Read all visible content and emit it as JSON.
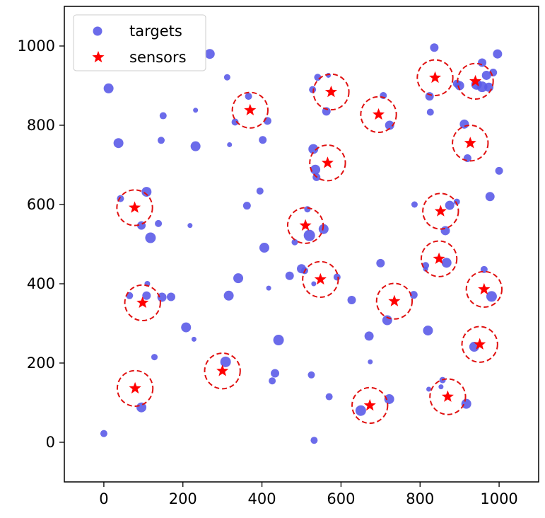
{
  "chart_data": {
    "type": "scatter",
    "xlim": [
      -100,
      1100
    ],
    "ylim": [
      -100,
      1100
    ],
    "xticks": [
      "0",
      "200",
      "400",
      "600",
      "800",
      "1000"
    ],
    "yticks": [
      "0",
      "200",
      "400",
      "600",
      "800",
      "1000"
    ],
    "grid": false,
    "legend_position": "top-left",
    "colors": {
      "targets": "#5b5be8",
      "sensors": "#ff0000",
      "circle": "#e01010"
    },
    "sensing_radius": 45,
    "series": [
      {
        "name": "targets",
        "marker": "circle",
        "points": [
          {
            "x": 0,
            "y": 22,
            "s": 5
          },
          {
            "x": 12,
            "y": 893,
            "s": 7
          },
          {
            "x": 37,
            "y": 755,
            "s": 7
          },
          {
            "x": 42,
            "y": 615,
            "s": 5
          },
          {
            "x": 65,
            "y": 370,
            "s": 5
          },
          {
            "x": 95,
            "y": 88,
            "s": 7
          },
          {
            "x": 95,
            "y": 547,
            "s": 6
          },
          {
            "x": 108,
            "y": 632,
            "s": 7
          },
          {
            "x": 108,
            "y": 370,
            "s": 6
          },
          {
            "x": 110,
            "y": 400,
            "s": 4
          },
          {
            "x": 118,
            "y": 516,
            "s": 7.5
          },
          {
            "x": 128,
            "y": 215,
            "s": 4.5
          },
          {
            "x": 138,
            "y": 552,
            "s": 5
          },
          {
            "x": 145,
            "y": 762,
            "s": 5
          },
          {
            "x": 147,
            "y": 366,
            "s": 6.5
          },
          {
            "x": 150,
            "y": 824,
            "s": 5
          },
          {
            "x": 170,
            "y": 367,
            "s": 6
          },
          {
            "x": 208,
            "y": 290,
            "s": 7
          },
          {
            "x": 218,
            "y": 547,
            "s": 3.5
          },
          {
            "x": 228,
            "y": 260,
            "s": 3.5
          },
          {
            "x": 232,
            "y": 838,
            "s": 3.5
          },
          {
            "x": 232,
            "y": 747,
            "s": 7
          },
          {
            "x": 268,
            "y": 980,
            "s": 7
          },
          {
            "x": 308,
            "y": 203,
            "s": 7.5
          },
          {
            "x": 312,
            "y": 921,
            "s": 4.5
          },
          {
            "x": 316,
            "y": 370,
            "s": 7
          },
          {
            "x": 318,
            "y": 751,
            "s": 3.5
          },
          {
            "x": 332,
            "y": 808,
            "s": 5
          },
          {
            "x": 340,
            "y": 414,
            "s": 7
          },
          {
            "x": 362,
            "y": 597,
            "s": 5.5
          },
          {
            "x": 366,
            "y": 873,
            "s": 5
          },
          {
            "x": 395,
            "y": 634,
            "s": 5
          },
          {
            "x": 402,
            "y": 763,
            "s": 5.5
          },
          {
            "x": 406,
            "y": 491,
            "s": 7
          },
          {
            "x": 414,
            "y": 811,
            "s": 5.5
          },
          {
            "x": 417,
            "y": 389,
            "s": 3.5
          },
          {
            "x": 426,
            "y": 155,
            "s": 5
          },
          {
            "x": 433,
            "y": 174,
            "s": 6
          },
          {
            "x": 442,
            "y": 258,
            "s": 7.5
          },
          {
            "x": 470,
            "y": 420,
            "s": 6
          },
          {
            "x": 483,
            "y": 505,
            "s": 4.5
          },
          {
            "x": 500,
            "y": 438,
            "s": 6.5
          },
          {
            "x": 508,
            "y": 433,
            "s": 5
          },
          {
            "x": 515,
            "y": 588,
            "s": 4.5
          },
          {
            "x": 520,
            "y": 522,
            "s": 8
          },
          {
            "x": 525,
            "y": 170,
            "s": 5
          },
          {
            "x": 528,
            "y": 890,
            "s": 5
          },
          {
            "x": 530,
            "y": 740,
            "s": 7
          },
          {
            "x": 531,
            "y": 400,
            "s": 3.5
          },
          {
            "x": 532,
            "y": 5,
            "s": 5
          },
          {
            "x": 535,
            "y": 688,
            "s": 7
          },
          {
            "x": 538,
            "y": 669,
            "s": 5.5
          },
          {
            "x": 541,
            "y": 921,
            "s": 5
          },
          {
            "x": 556,
            "y": 538,
            "s": 7
          },
          {
            "x": 563,
            "y": 835,
            "s": 6
          },
          {
            "x": 568,
            "y": 926,
            "s": 3.5
          },
          {
            "x": 570,
            "y": 115,
            "s": 5
          },
          {
            "x": 590,
            "y": 417,
            "s": 5
          },
          {
            "x": 627,
            "y": 359,
            "s": 6
          },
          {
            "x": 650,
            "y": 80,
            "s": 7.5
          },
          {
            "x": 671,
            "y": 268,
            "s": 6.5
          },
          {
            "x": 674,
            "y": 203,
            "s": 3.5
          },
          {
            "x": 700,
            "y": 452,
            "s": 6
          },
          {
            "x": 707,
            "y": 875,
            "s": 5
          },
          {
            "x": 717,
            "y": 308,
            "s": 7
          },
          {
            "x": 722,
            "y": 109,
            "s": 7
          },
          {
            "x": 723,
            "y": 800,
            "s": 6.5
          },
          {
            "x": 784,
            "y": 372,
            "s": 5.5
          },
          {
            "x": 786,
            "y": 600,
            "s": 4.5
          },
          {
            "x": 814,
            "y": 446,
            "s": 5
          },
          {
            "x": 814,
            "y": 437,
            "s": 3.5
          },
          {
            "x": 820,
            "y": 282,
            "s": 7
          },
          {
            "x": 822,
            "y": 134,
            "s": 3.5
          },
          {
            "x": 824,
            "y": 873,
            "s": 6
          },
          {
            "x": 826,
            "y": 833,
            "s": 5
          },
          {
            "x": 836,
            "y": 996,
            "s": 6
          },
          {
            "x": 853,
            "y": 140,
            "s": 3.5
          },
          {
            "x": 857,
            "y": 157,
            "s": 4.5
          },
          {
            "x": 864,
            "y": 534,
            "s": 6.5
          },
          {
            "x": 867,
            "y": 453,
            "s": 7
          },
          {
            "x": 875,
            "y": 598,
            "s": 6.5
          },
          {
            "x": 893,
            "y": 905,
            "s": 5.5
          },
          {
            "x": 893,
            "y": 607,
            "s": 4.5
          },
          {
            "x": 900,
            "y": 900,
            "s": 6.5
          },
          {
            "x": 912,
            "y": 803,
            "s": 6.5
          },
          {
            "x": 917,
            "y": 97,
            "s": 7
          },
          {
            "x": 920,
            "y": 717,
            "s": 5.5
          },
          {
            "x": 937,
            "y": 241,
            "s": 7
          },
          {
            "x": 943,
            "y": 903,
            "s": 7.5
          },
          {
            "x": 957,
            "y": 897,
            "s": 7.5
          },
          {
            "x": 957,
            "y": 958,
            "s": 6
          },
          {
            "x": 962,
            "y": 436,
            "s": 5
          },
          {
            "x": 968,
            "y": 926,
            "s": 6.5
          },
          {
            "x": 974,
            "y": 896,
            "s": 6.5
          },
          {
            "x": 977,
            "y": 620,
            "s": 6.5
          },
          {
            "x": 981,
            "y": 368,
            "s": 7.5
          },
          {
            "x": 985,
            "y": 933,
            "s": 5.5
          },
          {
            "x": 996,
            "y": 980,
            "s": 6.5
          },
          {
            "x": 1000,
            "y": 685,
            "s": 5.5
          }
        ]
      },
      {
        "name": "sensors",
        "marker": "star",
        "points": [
          {
            "x": 79,
            "y": 136
          },
          {
            "x": 98,
            "y": 352
          },
          {
            "x": 78,
            "y": 592
          },
          {
            "x": 300,
            "y": 180
          },
          {
            "x": 370,
            "y": 838
          },
          {
            "x": 510,
            "y": 547
          },
          {
            "x": 548,
            "y": 411
          },
          {
            "x": 566,
            "y": 705
          },
          {
            "x": 575,
            "y": 884
          },
          {
            "x": 673,
            "y": 93
          },
          {
            "x": 695,
            "y": 827
          },
          {
            "x": 735,
            "y": 356
          },
          {
            "x": 838,
            "y": 920
          },
          {
            "x": 848,
            "y": 463
          },
          {
            "x": 852,
            "y": 583
          },
          {
            "x": 870,
            "y": 115
          },
          {
            "x": 927,
            "y": 755
          },
          {
            "x": 940,
            "y": 911
          },
          {
            "x": 951,
            "y": 247
          },
          {
            "x": 962,
            "y": 386
          }
        ]
      }
    ]
  }
}
